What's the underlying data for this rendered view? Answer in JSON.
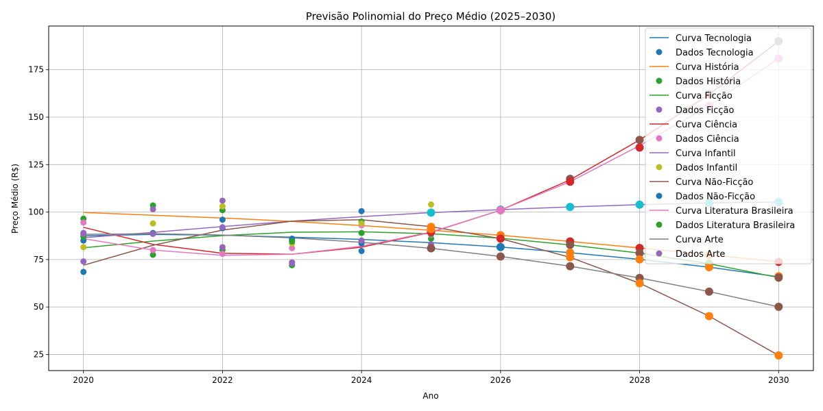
{
  "chart_data": {
    "type": "line",
    "title": "Previsão Polinomial do Preço Médio (2025–2030)",
    "xlabel": "Ano",
    "ylabel": "Preço Médio (R$)",
    "xlim": [
      2019.5,
      2030.5
    ],
    "ylim": [
      16.5,
      198
    ],
    "xticks": [
      2020,
      2022,
      2024,
      2026,
      2028,
      2030
    ],
    "yticks": [
      25,
      50,
      75,
      100,
      125,
      150,
      175
    ],
    "grid": true,
    "legend_position": "top-right",
    "curve_x": [
      2020,
      2021,
      2022,
      2023,
      2024,
      2025,
      2026,
      2027,
      2028,
      2029,
      2030
    ],
    "series": [
      {
        "category": "Tecnologia",
        "curve_name": "Curva Tecnologia",
        "points_name": "Dados Tecnologia",
        "curve_color": "#1f77b4",
        "points_color": "#1f77b4",
        "curve": [
          87.5,
          88.2,
          87.8,
          86.8,
          85.6,
          83.9,
          81.6,
          78.6,
          75.1,
          71.0,
          65.9
        ],
        "points": [
          {
            "x": 2020,
            "y": 68.5
          },
          {
            "x": 2020,
            "y": 85
          },
          {
            "x": 2021,
            "y": 89
          },
          {
            "x": 2022,
            "y": 96
          },
          {
            "x": 2023,
            "y": 86
          },
          {
            "x": 2024,
            "y": 100.5
          },
          {
            "x": 2024,
            "y": 79.5
          }
        ]
      },
      {
        "category": "História",
        "curve_name": "Curva História",
        "points_name": "Dados História",
        "curve_color": "#ff7f0e",
        "points_color": "#2ca02c",
        "curve": [
          99.8,
          98.3,
          96.9,
          95.1,
          92.9,
          90.4,
          87.8,
          84.5,
          81.1,
          77.5,
          73.8
        ],
        "points": [
          {
            "x": 2020,
            "y": 96.5
          },
          {
            "x": 2021,
            "y": 103.5
          },
          {
            "x": 2021,
            "y": 77.5
          },
          {
            "x": 2022,
            "y": 101
          },
          {
            "x": 2022,
            "y": 80
          },
          {
            "x": 2023,
            "y": 72
          },
          {
            "x": 2024,
            "y": 95
          },
          {
            "x": 2025,
            "y": 86
          }
        ]
      },
      {
        "category": "Ficção",
        "curve_name": "Curva Ficção",
        "points_name": "Dados Ficção",
        "curve_color": "#2ca02c",
        "points_color": "#9467bd",
        "curve": [
          81.2,
          84.7,
          87.6,
          89.4,
          89.6,
          88.6,
          86.2,
          82.7,
          78.4,
          72.8,
          65.5
        ],
        "points": [
          {
            "x": 2020,
            "y": 74
          },
          {
            "x": 2020,
            "y": 89
          },
          {
            "x": 2021,
            "y": 101.5
          },
          {
            "x": 2022,
            "y": 106
          },
          {
            "x": 2022,
            "y": 81.5
          },
          {
            "x": 2023,
            "y": 73.5
          },
          {
            "x": 2024,
            "y": 85
          },
          {
            "x": 2025,
            "y": 83
          }
        ]
      },
      {
        "category": "Ciência",
        "curve_name": "Curva Ciência",
        "points_name": "Dados Ciência",
        "curve_color": "#d62728",
        "points_color": "#e377c2",
        "curve": [
          92,
          83,
          78.3,
          77.8,
          81.5,
          89.3,
          101,
          117,
          138,
          162,
          190
        ],
        "points": [
          {
            "x": 2020,
            "y": 94.5
          },
          {
            "x": 2021,
            "y": 80
          },
          {
            "x": 2022,
            "y": 78
          },
          {
            "x": 2023,
            "y": 81
          },
          {
            "x": 2024,
            "y": 93
          },
          {
            "x": 2025,
            "y": 88
          }
        ]
      },
      {
        "category": "Infantil",
        "curve_name": "Curva Infantil",
        "points_name": "Dados Infantil",
        "curve_color": "#9467bd",
        "points_color": "#bcbd22",
        "curve": [
          86.5,
          89.3,
          92.4,
          95.2,
          97.6,
          99.7,
          101.3,
          102.7,
          103.9,
          104.8,
          105.3
        ],
        "points": [
          {
            "x": 2020,
            "y": 81.5
          },
          {
            "x": 2021,
            "y": 94
          },
          {
            "x": 2022,
            "y": 103
          },
          {
            "x": 2023,
            "y": 83.5
          },
          {
            "x": 2024,
            "y": 94
          },
          {
            "x": 2025,
            "y": 104
          }
        ]
      },
      {
        "category": "Não-Ficção",
        "curve_name": "Curva Não-Ficção",
        "points_name": "Dados Não-Ficção",
        "curve_color": "#8c564b",
        "points_color": "#1f77b4",
        "curve": [
          72,
          82.5,
          90.5,
          95.2,
          96,
          92.3,
          86,
          76.2,
          62.5,
          45.2,
          24.5
        ],
        "points": [
          {
            "x": 2020,
            "y": 87.5
          },
          {
            "x": 2022,
            "y": 91.5
          },
          {
            "x": 2023,
            "y": 85
          },
          {
            "x": 2024,
            "y": 83.5
          },
          {
            "x": 2025,
            "y": 90
          }
        ]
      },
      {
        "category": "Literatura Brasileira",
        "curve_name": "Curva Literatura Brasileira",
        "points_name": "Dados Literatura Brasileira",
        "curve_color": "#e377c2",
        "points_color": "#2ca02c",
        "curve": [
          86,
          80,
          77.2,
          77.8,
          82,
          89.5,
          101,
          116,
          135,
          156,
          181
        ],
        "points": [
          {
            "x": 2020,
            "y": 87
          },
          {
            "x": 2023,
            "y": 84.5
          },
          {
            "x": 2024,
            "y": 89
          },
          {
            "x": 2025,
            "y": 88.5
          }
        ]
      },
      {
        "category": "Arte",
        "curve_name": "Curva Arte",
        "points_name": "Dados Arte",
        "curve_color": "#7f7f7f",
        "points_color": "#9467bd",
        "curve": [
          88.3,
          88.6,
          87.9,
          86.4,
          84.1,
          80.9,
          76.6,
          71.5,
          65.3,
          58.1,
          50.1
        ],
        "points": [
          {
            "x": 2020,
            "y": 88.5
          },
          {
            "x": 2021,
            "y": 88.5
          },
          {
            "x": 2022,
            "y": 92
          },
          {
            "x": 2023,
            "y": 73
          },
          {
            "x": 2024,
            "y": 85
          },
          {
            "x": 2025,
            "y": 81
          }
        ]
      }
    ],
    "forecast_markers": [
      {
        "x": 2025,
        "y": 92.2,
        "color": "#ff7f0e"
      },
      {
        "x": 2025,
        "y": 89.5,
        "color": "#d62728"
      },
      {
        "x": 2025,
        "y": 99.7,
        "color": "#17becf"
      },
      {
        "x": 2025,
        "y": 91.0,
        "color": "#ff7f0e"
      },
      {
        "x": 2025,
        "y": 80.9,
        "color": "#8c564b"
      },
      {
        "x": 2026,
        "y": 101.3,
        "color": "#17becf"
      },
      {
        "x": 2026,
        "y": 101,
        "color": "#d62728"
      },
      {
        "x": 2026,
        "y": 101,
        "color": "#e377c2"
      },
      {
        "x": 2026,
        "y": 87.8,
        "color": "#ff7f0e"
      },
      {
        "x": 2026,
        "y": 86,
        "color": "#d62728"
      },
      {
        "x": 2026,
        "y": 81.6,
        "color": "#1f77b4"
      },
      {
        "x": 2026,
        "y": 76.6,
        "color": "#8c564b"
      },
      {
        "x": 2027,
        "y": 117.5,
        "color": "#8c564b"
      },
      {
        "x": 2027,
        "y": 116,
        "color": "#d62728"
      },
      {
        "x": 2027,
        "y": 102.7,
        "color": "#17becf"
      },
      {
        "x": 2027,
        "y": 84.5,
        "color": "#d62728"
      },
      {
        "x": 2027,
        "y": 82.7,
        "color": "#8c564b"
      },
      {
        "x": 2027,
        "y": 78.6,
        "color": "#ff7f0e"
      },
      {
        "x": 2027,
        "y": 76.2,
        "color": "#ff7f0e"
      },
      {
        "x": 2027,
        "y": 71.5,
        "color": "#8c564b"
      },
      {
        "x": 2028,
        "y": 138,
        "color": "#8c564b"
      },
      {
        "x": 2028,
        "y": 134,
        "color": "#d62728"
      },
      {
        "x": 2028,
        "y": 103.9,
        "color": "#17becf"
      },
      {
        "x": 2028,
        "y": 81.1,
        "color": "#d62728"
      },
      {
        "x": 2028,
        "y": 78.4,
        "color": "#8c564b"
      },
      {
        "x": 2028,
        "y": 75.1,
        "color": "#ff7f0e"
      },
      {
        "x": 2028,
        "y": 65.3,
        "color": "#8c564b"
      },
      {
        "x": 2028,
        "y": 62.5,
        "color": "#ff7f0e"
      },
      {
        "x": 2029,
        "y": 162,
        "color": "#8c564b"
      },
      {
        "x": 2029,
        "y": 156,
        "color": "#e377c2"
      },
      {
        "x": 2029,
        "y": 104.8,
        "color": "#17becf"
      },
      {
        "x": 2029,
        "y": 77.5,
        "color": "#ff7f0e"
      },
      {
        "x": 2029,
        "y": 72.8,
        "color": "#2ca02c"
      },
      {
        "x": 2029,
        "y": 71.0,
        "color": "#ff7f0e"
      },
      {
        "x": 2029,
        "y": 58.1,
        "color": "#8c564b"
      },
      {
        "x": 2029,
        "y": 45.2,
        "color": "#ff7f0e"
      },
      {
        "x": 2030,
        "y": 190,
        "color": "#7f7f7f"
      },
      {
        "x": 2030,
        "y": 181,
        "color": "#e377c2"
      },
      {
        "x": 2030,
        "y": 105.3,
        "color": "#17becf"
      },
      {
        "x": 2030,
        "y": 73.8,
        "color": "#d62728"
      },
      {
        "x": 2030,
        "y": 66.2,
        "color": "#ff7f0e"
      },
      {
        "x": 2030,
        "y": 65.5,
        "color": "#8c564b"
      },
      {
        "x": 2030,
        "y": 50.1,
        "color": "#8c564b"
      },
      {
        "x": 2030,
        "y": 24.5,
        "color": "#ff7f0e"
      }
    ]
  }
}
